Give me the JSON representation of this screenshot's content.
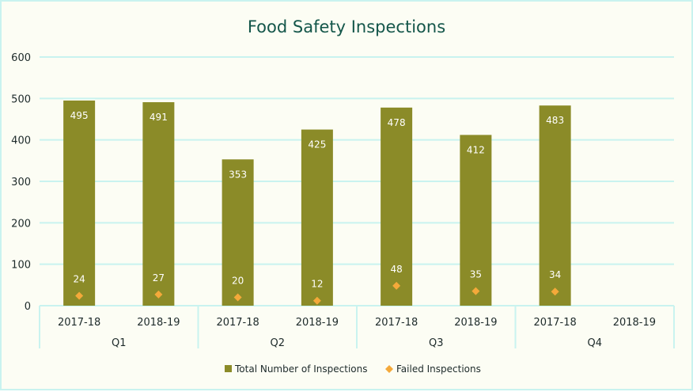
{
  "chart_data": {
    "type": "bar",
    "title": "Food Safety Inspections",
    "groups": [
      {
        "name": "Q1",
        "categories": [
          "2017-18",
          "2018-19"
        ]
      },
      {
        "name": "Q2",
        "categories": [
          "2017-18",
          "2018-19"
        ]
      },
      {
        "name": "Q3",
        "categories": [
          "2017-18",
          "2018-19"
        ]
      },
      {
        "name": "Q4",
        "categories": [
          "2017-18",
          "2018-19"
        ]
      }
    ],
    "categories": [
      "2017-18",
      "2018-19",
      "2017-18",
      "2018-19",
      "2017-18",
      "2018-19",
      "2017-18",
      "2018-19"
    ],
    "series": [
      {
        "name": "Total Number of Inspections",
        "type": "bar",
        "color": "#8b8b28",
        "values": [
          495,
          491,
          353,
          425,
          478,
          412,
          483,
          null
        ]
      },
      {
        "name": "Failed Inspections",
        "type": "scatter",
        "marker": "diamond",
        "color": "#f4a93a",
        "values": [
          24,
          27,
          20,
          12,
          48,
          35,
          34,
          null
        ]
      }
    ],
    "yticks": [
      0,
      100,
      200,
      300,
      400,
      500,
      600
    ],
    "ylim": [
      0,
      600
    ],
    "grid": true,
    "legend_position": "bottom",
    "colors": {
      "grid": "#c9f3ef",
      "background": "#fcfdf4",
      "title": "#14564a",
      "text": "#1d2a2a"
    }
  }
}
